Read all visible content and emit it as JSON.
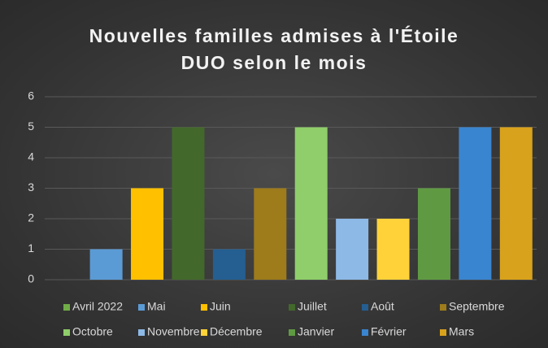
{
  "chart_data": {
    "type": "bar",
    "title": "Nouvelles familles admises à l'Étoile DUO selon le mois",
    "categories": [
      null
    ],
    "series": [
      {
        "name": "Avril 2022",
        "color": "#70ad47",
        "values": [
          0
        ]
      },
      {
        "name": "Mai",
        "color": "#5b9bd5",
        "values": [
          1
        ]
      },
      {
        "name": "Juin",
        "color": "#ffc000",
        "values": [
          3
        ]
      },
      {
        "name": "Juillet",
        "color": "#43682b",
        "values": [
          5
        ]
      },
      {
        "name": "Août",
        "color": "#255e91",
        "values": [
          1
        ]
      },
      {
        "name": "Septembre",
        "color": "#9e7b1b",
        "values": [
          3
        ]
      },
      {
        "name": "Octobre",
        "color": "#8fce6a",
        "values": [
          5
        ]
      },
      {
        "name": "Novembre",
        "color": "#8db9e6",
        "values": [
          2
        ]
      },
      {
        "name": "Décembre",
        "color": "#ffd23a",
        "values": [
          2
        ]
      },
      {
        "name": "Janvier",
        "color": "#5f9a43",
        "values": [
          3
        ]
      },
      {
        "name": "Février",
        "color": "#3a85cf",
        "values": [
          5
        ]
      },
      {
        "name": "Mars",
        "color": "#d9a21c",
        "values": [
          5
        ]
      }
    ],
    "ylim": [
      0,
      6
    ],
    "yticks": [
      0,
      1,
      2,
      3,
      4,
      5,
      6
    ],
    "grid": true,
    "legend": "bottom"
  }
}
